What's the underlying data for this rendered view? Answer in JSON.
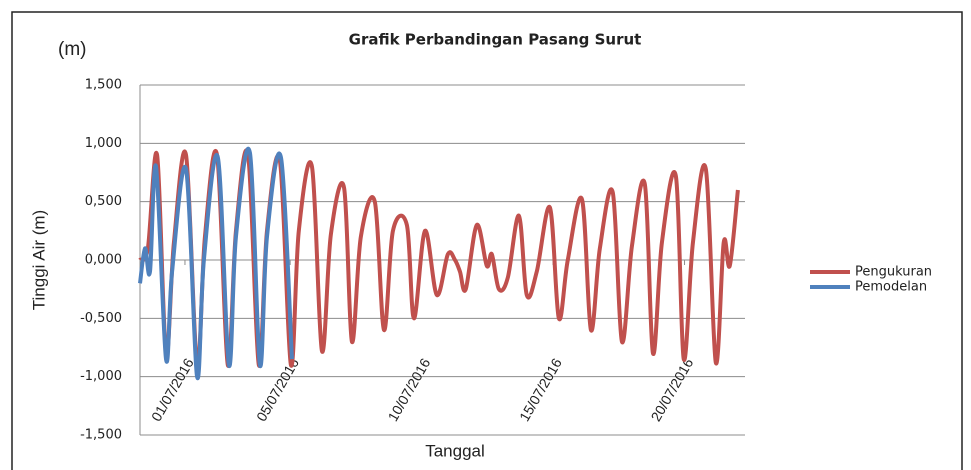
{
  "chart_data": {
    "type": "line",
    "title": "Grafik Perbandingan Pasang Surut",
    "unit_label": "(m)",
    "y_axis_label": "Tinggi Air (m)",
    "x_axis_label": "Tanggal",
    "ylim": [
      -1.5,
      1.5
    ],
    "yticks": [
      {
        "value": -1.5,
        "label": "-1,500"
      },
      {
        "value": -1,
        "label": "-1,000"
      },
      {
        "value": -0.5,
        "label": "-0,500"
      },
      {
        "value": 0,
        "label": "0,000"
      },
      {
        "value": 0.5,
        "label": "0,500"
      },
      {
        "value": 1,
        "label": "1,000"
      },
      {
        "value": 1.5,
        "label": "1,500"
      }
    ],
    "xlim": [
      -0.71,
      22.3
    ],
    "xticks": [
      {
        "value": 1,
        "label": "01/07/2016"
      },
      {
        "value": 5,
        "label": "05/07/2016"
      },
      {
        "value": 10,
        "label": "10/07/2016"
      },
      {
        "value": 15,
        "label": "15/07/2016"
      },
      {
        "value": 20,
        "label": "20/07/2016"
      }
    ],
    "grid": true,
    "legend": "right",
    "series": [
      {
        "name": "Pengukuran",
        "color": "#c0504d",
        "x": [
          -0.71,
          -0.41,
          -0.06,
          0.28,
          0.58,
          1.04,
          1.46,
          1.76,
          2.22,
          2.63,
          2.94,
          3.4,
          3.81,
          4.12,
          4.61,
          5.03,
          5.33,
          5.83,
          6.21,
          6.55,
          7.05,
          7.35,
          7.69,
          8.22,
          8.57,
          8.91,
          9.44,
          9.71,
          10.13,
          10.58,
          11.0,
          11.27,
          11.46,
          11.68,
          12.1,
          12.48,
          12.67,
          12.94,
          13.28,
          13.7,
          14.0,
          14.38,
          14.88,
          15.22,
          15.56,
          16.1,
          16.44,
          16.78,
          17.27,
          17.62,
          18.0,
          18.49,
          18.8,
          19.14,
          19.67,
          19.97,
          20.32,
          20.81,
          21.19,
          21.49,
          21.72,
          22.03
        ],
        "values": [
          0.0,
          0.1,
          0.9,
          -0.8,
          0.15,
          0.9,
          -0.9,
          0.2,
          0.9,
          -0.9,
          0.25,
          0.9,
          -0.9,
          0.25,
          0.85,
          -0.9,
          0.25,
          0.8,
          -0.78,
          0.22,
          0.62,
          -0.7,
          0.2,
          0.5,
          -0.6,
          0.25,
          0.3,
          -0.5,
          0.25,
          -0.3,
          0.05,
          0.0,
          -0.1,
          -0.25,
          0.3,
          -0.05,
          0.05,
          -0.25,
          -0.15,
          0.38,
          -0.3,
          -0.1,
          0.45,
          -0.5,
          0.0,
          0.52,
          -0.6,
          0.1,
          0.58,
          -0.7,
          0.12,
          0.65,
          -0.8,
          0.15,
          0.72,
          -0.85,
          0.15,
          0.78,
          -0.88,
          0.15,
          -0.05,
          0.6
        ]
      },
      {
        "name": "Pemodelan",
        "color": "#4f81bd",
        "x": [
          -0.71,
          -0.52,
          -0.33,
          -0.1,
          0.28,
          0.51,
          1.04,
          1.46,
          1.72,
          2.25,
          2.67,
          2.94,
          3.47,
          3.85,
          4.12,
          4.65,
          5.07
        ],
        "values": [
          -0.2,
          0.1,
          -0.1,
          0.8,
          -0.85,
          -0.1,
          0.78,
          -1.0,
          0.0,
          0.88,
          -0.9,
          0.2,
          0.92,
          -0.9,
          0.2,
          0.88,
          -0.85
        ]
      }
    ]
  }
}
